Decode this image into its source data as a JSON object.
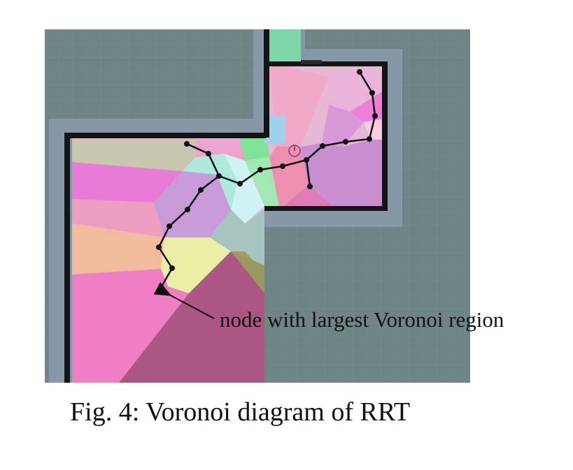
{
  "annotation": "node with largest Voronoi region",
  "caption": "Fig. 4: Voronoi diagram of RRT",
  "colors": {
    "unknown_area": "#6f8585",
    "wall": "#141414",
    "inflation": "#8e9db3",
    "tree": "#111111"
  }
}
